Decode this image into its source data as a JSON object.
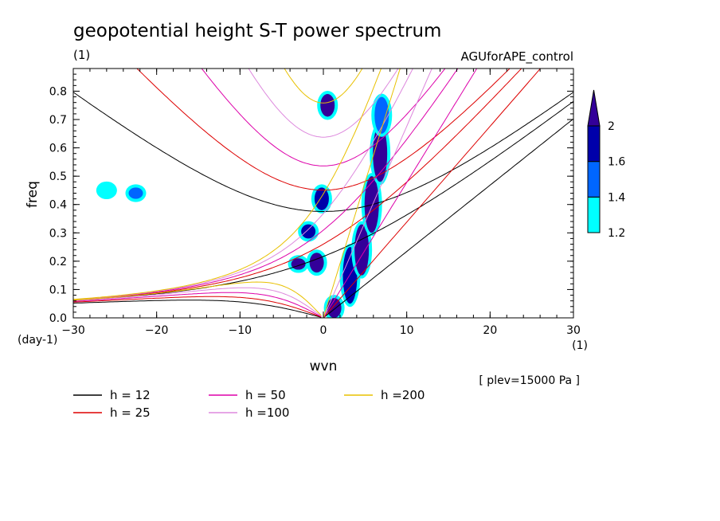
{
  "chart_data": {
    "type": "contour",
    "title": "geopotential height S-T power spectrum",
    "subtitle_left": "(1)",
    "subtitle_right": "AGUforAPE_control",
    "xlabel": "wvn",
    "ylabel": "freq",
    "x_unit": "(1)",
    "y_unit": "(day-1)",
    "xlim": [
      -30,
      30
    ],
    "ylim": [
      0,
      0.88
    ],
    "x_ticks": [
      -30,
      -20,
      -10,
      0,
      10,
      20,
      30
    ],
    "y_ticks": [
      0.0,
      0.1,
      0.2,
      0.3,
      0.4,
      0.5,
      0.6,
      0.7,
      0.8
    ],
    "note": "[ plev=15000 Pa ]",
    "colorbar": {
      "levels": [
        1.2,
        1.4,
        1.6,
        2
      ],
      "colors": [
        "#00ffff",
        "#0066ff",
        "#0000aa",
        "#330099"
      ]
    },
    "dispersion_curves": [
      {
        "label": "h = 12",
        "h": 12,
        "color": "#000000"
      },
      {
        "label": "h = 25",
        "h": 25,
        "color": "#dd0000"
      },
      {
        "label": "h = 50",
        "h": 50,
        "color": "#dd00aa"
      },
      {
        "label": "h =100",
        "h": 100,
        "color": "#dd88dd"
      },
      {
        "label": "h =200",
        "h": 200,
        "color": "#e8c000"
      }
    ],
    "power_regions": [
      {
        "x": 1.3,
        "y0": 0.0,
        "y1": 0.07,
        "level": 2
      },
      {
        "x": 3.2,
        "y0": 0.05,
        "y1": 0.25,
        "level": 1.6
      },
      {
        "x": 4.6,
        "y0": 0.15,
        "y1": 0.33,
        "level": 2
      },
      {
        "x": 5.8,
        "y0": 0.3,
        "y1": 0.5,
        "level": 2
      },
      {
        "x": 6.8,
        "y0": 0.48,
        "y1": 0.68,
        "level": 2
      },
      {
        "x": 7.0,
        "y0": 0.65,
        "y1": 0.78,
        "level": 1.4
      },
      {
        "x": 0.5,
        "y0": 0.71,
        "y1": 0.79,
        "level": 2
      },
      {
        "x": -0.2,
        "y0": 0.38,
        "y1": 0.46,
        "level": 1.6
      },
      {
        "x": -3.0,
        "y0": 0.17,
        "y1": 0.21,
        "level": 2
      },
      {
        "x": -0.8,
        "y0": 0.16,
        "y1": 0.23,
        "level": 2
      },
      {
        "x": -1.8,
        "y0": 0.28,
        "y1": 0.33,
        "level": 1.6
      },
      {
        "x": -26.0,
        "y0": 0.43,
        "y1": 0.47,
        "level": 1.2
      },
      {
        "x": -22.5,
        "y0": 0.42,
        "y1": 0.46,
        "level": 1.4
      }
    ]
  }
}
